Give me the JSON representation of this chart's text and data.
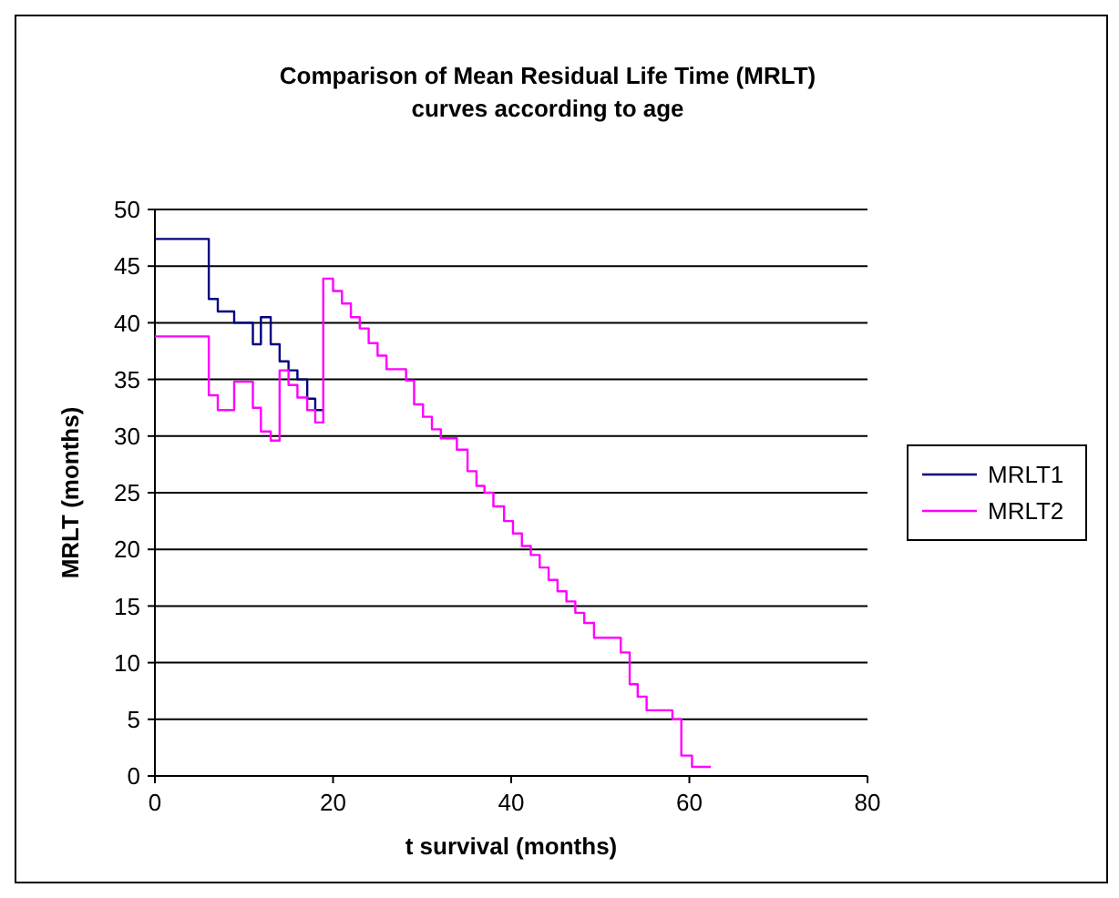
{
  "chart_data": {
    "type": "step",
    "title": "Comparison of Mean Residual Life Time (MRLT) curves according to age",
    "xlabel": "t survival (months)",
    "ylabel": "MRLT (months)",
    "xlim": [
      0,
      80
    ],
    "xticks": [
      0,
      20,
      40,
      60,
      80
    ],
    "ylim": [
      0,
      50
    ],
    "yticks": [
      0,
      5,
      10,
      15,
      20,
      25,
      30,
      35,
      40,
      45,
      50
    ],
    "grid": "y",
    "legend": "right",
    "series": [
      {
        "name": "MRLT1",
        "color": "#000080",
        "x": [
          0,
          6.05,
          7.06,
          8.9,
          11.0,
          11.9,
          13.0,
          14.0,
          15.0,
          16.0,
          17.1,
          18.0,
          18.9
        ],
        "values": [
          47.4,
          42.1,
          41.0,
          40.0,
          38.1,
          40.5,
          38.1,
          36.6,
          35.8,
          35.0,
          33.3,
          32.3,
          32.3
        ]
      },
      {
        "name": "MRLT2",
        "color": "#ff00ff",
        "x": [
          0,
          6.05,
          7.06,
          8.9,
          11.0,
          11.9,
          13.0,
          14.0,
          15.0,
          16.0,
          17.1,
          18.0,
          18.9,
          20.0,
          21.0,
          22.0,
          23.0,
          24.0,
          25.0,
          26.0,
          28.2,
          29.1,
          30.1,
          31.1,
          32.1,
          33.9,
          35.1,
          36.1,
          37.0,
          38.0,
          39.2,
          40.2,
          41.2,
          42.2,
          43.2,
          44.2,
          45.2,
          46.2,
          47.2,
          48.2,
          49.3,
          52.3,
          53.3,
          54.2,
          55.2,
          58.1,
          59.1,
          60.3,
          62.4
        ],
        "values": [
          38.8,
          33.6,
          32.3,
          34.8,
          32.5,
          30.4,
          29.6,
          35.8,
          34.5,
          33.4,
          32.3,
          31.2,
          43.9,
          42.8,
          41.7,
          40.5,
          39.5,
          38.2,
          37.1,
          35.9,
          34.9,
          32.8,
          31.7,
          30.6,
          29.8,
          28.8,
          26.9,
          25.6,
          25.0,
          23.8,
          22.5,
          21.4,
          20.3,
          19.5,
          18.4,
          17.3,
          16.3,
          15.4,
          14.4,
          13.5,
          12.2,
          10.9,
          8.1,
          7.0,
          5.8,
          5.0,
          1.8,
          0.8,
          0.8
        ]
      }
    ]
  }
}
